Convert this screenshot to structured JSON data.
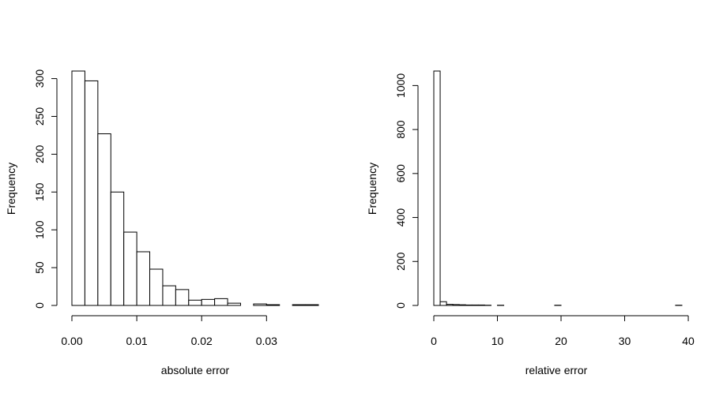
{
  "chart_data": [
    {
      "type": "bar",
      "subtype": "histogram",
      "xlabel": "absolute error",
      "ylabel": "Frequency",
      "bin_width": 0.002,
      "bins_start": 0,
      "values": [
        310,
        297,
        227,
        150,
        97,
        71,
        48,
        26,
        21,
        7,
        8,
        9,
        3,
        0,
        2,
        1,
        0,
        1,
        1
      ],
      "xlim": [
        0,
        0.038
      ],
      "ylim": [
        0,
        310
      ],
      "x_ticks": [
        {
          "value": 0.0,
          "label": "0.00"
        },
        {
          "value": 0.01,
          "label": "0.01"
        },
        {
          "value": 0.02,
          "label": "0.02"
        },
        {
          "value": 0.03,
          "label": "0.03"
        }
      ],
      "y_ticks": [
        {
          "value": 0,
          "label": "0"
        },
        {
          "value": 50,
          "label": "50"
        },
        {
          "value": 100,
          "label": "100"
        },
        {
          "value": 150,
          "label": "150"
        },
        {
          "value": 200,
          "label": "200"
        },
        {
          "value": 250,
          "label": "250"
        },
        {
          "value": 300,
          "label": "300"
        }
      ],
      "grid": false,
      "bar_fill": "#ffffff",
      "bar_stroke": "#000000"
    },
    {
      "type": "bar",
      "subtype": "histogram",
      "xlabel": "relative error",
      "ylabel": "Frequency",
      "bin_width": 1,
      "bins_start": 0,
      "values": [
        1066,
        17,
        5,
        4,
        3,
        2,
        2,
        2,
        1,
        0,
        1,
        0,
        0,
        0,
        0,
        0,
        0,
        0,
        0,
        1,
        0,
        0,
        0,
        0,
        0,
        0,
        0,
        0,
        0,
        0,
        0,
        0,
        0,
        0,
        0,
        0,
        0,
        0,
        1
      ],
      "xlim": [
        0,
        39
      ],
      "ylim": [
        0,
        1066
      ],
      "x_ticks": [
        {
          "value": 0,
          "label": "0"
        },
        {
          "value": 10,
          "label": "10"
        },
        {
          "value": 20,
          "label": "20"
        },
        {
          "value": 30,
          "label": "30"
        },
        {
          "value": 40,
          "label": "40"
        }
      ],
      "y_ticks": [
        {
          "value": 0,
          "label": "0"
        },
        {
          "value": 200,
          "label": "200"
        },
        {
          "value": 400,
          "label": "400"
        },
        {
          "value": 600,
          "label": "600"
        },
        {
          "value": 800,
          "label": "800"
        },
        {
          "value": 1000,
          "label": "1000"
        }
      ],
      "grid": false,
      "bar_fill": "#ffffff",
      "bar_stroke": "#000000"
    }
  ]
}
